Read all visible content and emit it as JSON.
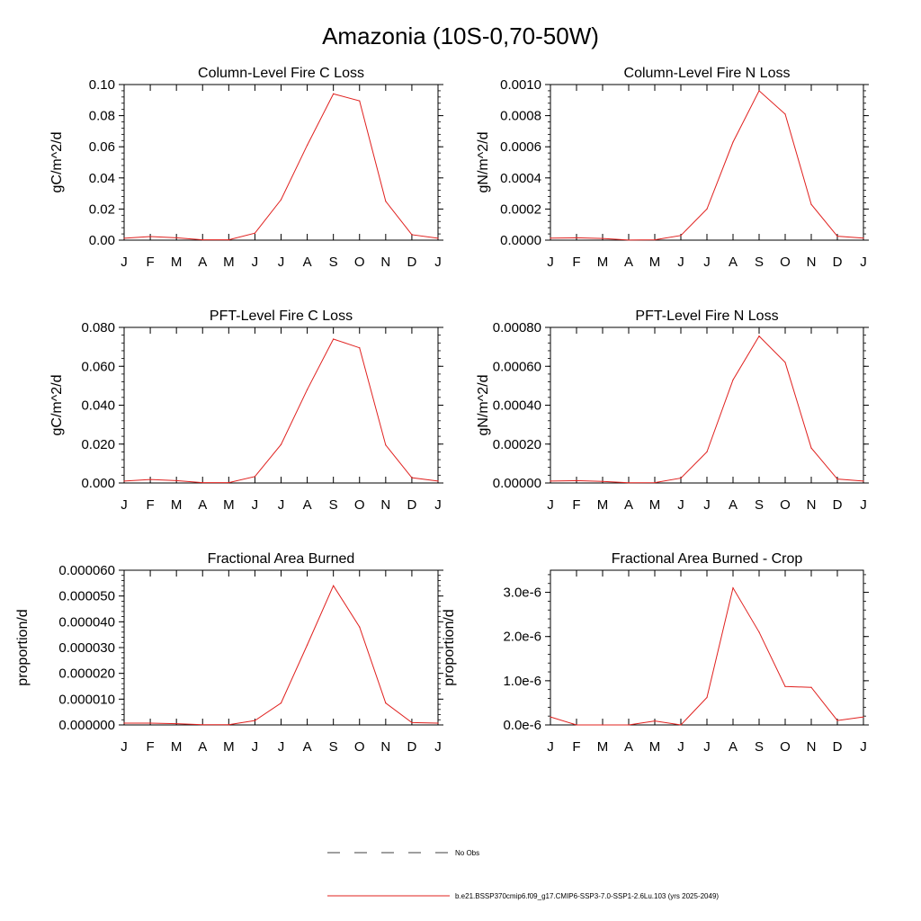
{
  "figure_title": "Amazonia (10S-0,70-50W)",
  "months": [
    "J",
    "F",
    "M",
    "A",
    "M",
    "J",
    "J",
    "A",
    "S",
    "O",
    "N",
    "D",
    "J"
  ],
  "colors": {
    "model_line": "#e0201e",
    "obs_line": "#000000",
    "axes": "#000000"
  },
  "legend": [
    {
      "label": "No Obs",
      "style": "dashed",
      "color": "#000000"
    },
    {
      "label": "b.e21.BSSP370cmip6.f09_g17.CMIP6-SSP3-7.0-SSP1-2.6Lu.103 (yrs 2025-2049)",
      "style": "solid",
      "color": "#e0201e"
    }
  ],
  "chart_data": [
    {
      "type": "line",
      "title": "Column-Level Fire C Loss",
      "ylabel": "gC/m^2/d",
      "ylim": [
        0,
        0.1
      ],
      "y_ticks": [
        0,
        0.02,
        0.04,
        0.06,
        0.08,
        0.1
      ],
      "y_tick_labels": [
        "0.00",
        "0.02",
        "0.04",
        "0.06",
        "0.08",
        "0.10"
      ],
      "x": [
        "J",
        "F",
        "M",
        "A",
        "M",
        "J",
        "J",
        "A",
        "S",
        "O",
        "N",
        "D",
        "J"
      ],
      "values": [
        0.0012,
        0.0023,
        0.0015,
        0.0002,
        0.0002,
        0.0045,
        0.026,
        0.061,
        0.094,
        0.0895,
        0.025,
        0.0035,
        0.0012
      ]
    },
    {
      "type": "line",
      "title": "Column-Level Fire N Loss",
      "ylabel": "gN/m^2/d",
      "ylim": [
        0,
        0.001
      ],
      "y_ticks": [
        0,
        0.0002,
        0.0004,
        0.0006,
        0.0008,
        0.001
      ],
      "y_tick_labels": [
        "0.0000",
        "0.0002",
        "0.0004",
        "0.0006",
        "0.0008",
        "0.0010"
      ],
      "x": [
        "J",
        "F",
        "M",
        "A",
        "M",
        "J",
        "J",
        "A",
        "S",
        "O",
        "N",
        "D",
        "J"
      ],
      "values": [
        1.3e-05,
        1.5e-05,
        1.1e-05,
        1e-06,
        2e-06,
        3e-05,
        0.0002,
        0.00063,
        0.00096,
        0.00081,
        0.00023,
        2.5e-05,
        1.3e-05
      ]
    },
    {
      "type": "line",
      "title": "PFT-Level Fire C Loss",
      "ylabel": "gC/m^2/d",
      "ylim": [
        0,
        0.08
      ],
      "y_ticks": [
        0,
        0.02,
        0.04,
        0.06,
        0.08
      ],
      "y_tick_labels": [
        "0.000",
        "0.020",
        "0.040",
        "0.060",
        "0.080"
      ],
      "x": [
        "J",
        "F",
        "M",
        "A",
        "M",
        "J",
        "J",
        "A",
        "S",
        "O",
        "N",
        "D",
        "J"
      ],
      "values": [
        0.001,
        0.0018,
        0.0012,
        0.0002,
        0.0002,
        0.0033,
        0.0198,
        0.048,
        0.074,
        0.0695,
        0.0195,
        0.0027,
        0.001
      ]
    },
    {
      "type": "line",
      "title": "PFT-Level Fire N Loss",
      "ylabel": "gN/m^2/d",
      "ylim": [
        0,
        0.0008
      ],
      "y_ticks": [
        0,
        0.0002,
        0.0004,
        0.0006,
        0.0008
      ],
      "y_tick_labels": [
        "0.00000",
        "0.00020",
        "0.00040",
        "0.00060",
        "0.00080"
      ],
      "x": [
        "J",
        "F",
        "M",
        "A",
        "M",
        "J",
        "J",
        "A",
        "S",
        "O",
        "N",
        "D",
        "J"
      ],
      "values": [
        1e-05,
        1.2e-05,
        8e-06,
        1e-06,
        2e-06,
        2.5e-05,
        0.00016,
        0.00053,
        0.000755,
        0.00062,
        0.00018,
        2e-05,
        1e-05
      ]
    },
    {
      "type": "line",
      "title": "Fractional Area Burned",
      "ylabel": "proportion/d",
      "ylim": [
        0,
        6e-05
      ],
      "y_ticks": [
        0,
        1e-05,
        2e-05,
        3e-05,
        4e-05,
        5e-05,
        6e-05
      ],
      "y_tick_labels": [
        "0.000000",
        "0.000010",
        "0.000020",
        "0.000030",
        "0.000040",
        "0.000050",
        "0.000060"
      ],
      "x": [
        "J",
        "F",
        "M",
        "A",
        "M",
        "J",
        "J",
        "A",
        "S",
        "O",
        "N",
        "D",
        "J"
      ],
      "values": [
        7e-07,
        7e-07,
        5e-07,
        1e-07,
        1e-07,
        1.7e-06,
        8.5e-06,
        3.1e-05,
        5.4e-05,
        3.8e-05,
        8.5e-06,
        9e-07,
        7e-07
      ]
    },
    {
      "type": "line",
      "title": "Fractional Area Burned - Crop",
      "ylabel": "proportion/d",
      "ylim": [
        0,
        3.5e-06
      ],
      "y_ticks": [
        0,
        1e-06,
        2e-06,
        3e-06
      ],
      "y_tick_labels": [
        "0.0e-6",
        "1.0e-6",
        "2.0e-6",
        "3.0e-6"
      ],
      "x": [
        "J",
        "F",
        "M",
        "A",
        "M",
        "J",
        "J",
        "A",
        "S",
        "O",
        "N",
        "D",
        "J"
      ],
      "values": [
        1.8e-07,
        0.0,
        0.0,
        0.0,
        9e-08,
        0.0,
        6.2e-07,
        3.1e-06,
        2.1e-06,
        8.7e-07,
        8.5e-07,
        1e-07,
        1.8e-07
      ]
    }
  ]
}
